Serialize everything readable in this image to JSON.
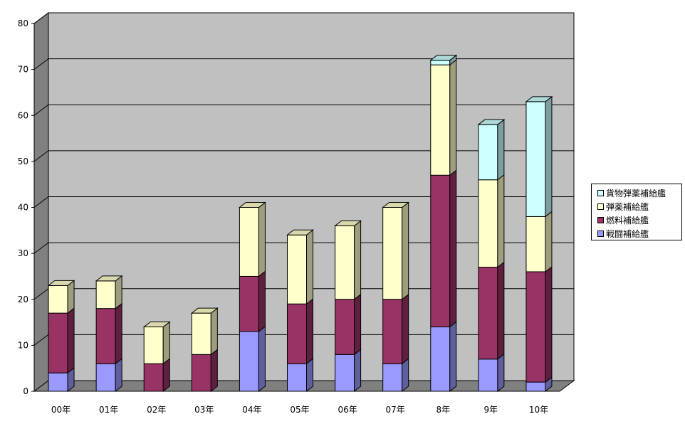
{
  "chart_data": {
    "type": "bar",
    "stacked": true,
    "three_d": true,
    "categories": [
      "00年",
      "01年",
      "02年",
      "03年",
      "04年",
      "05年",
      "06年",
      "07年",
      "8年",
      "9年",
      "10年"
    ],
    "series": [
      {
        "name": "戦闘補給艦",
        "color": "#9999ff",
        "values": [
          4,
          6,
          0,
          0,
          13,
          6,
          8,
          6,
          14,
          7,
          2
        ]
      },
      {
        "name": "燃料補給艦",
        "color": "#993366",
        "values": [
          13,
          12,
          6,
          8,
          12,
          13,
          12,
          14,
          33,
          20,
          24
        ]
      },
      {
        "name": "弾薬補給艦",
        "color": "#ffffcc",
        "values": [
          6,
          6,
          8,
          9,
          15,
          15,
          16,
          20,
          24,
          19,
          12
        ]
      },
      {
        "name": "貨物弾薬補給艦",
        "color": "#ccffff",
        "values": [
          0,
          0,
          0,
          0,
          0,
          0,
          0,
          0,
          1,
          12,
          25
        ]
      }
    ],
    "y_ticks": [
      "0",
      "10",
      "20",
      "30",
      "40",
      "50",
      "60",
      "70",
      "80"
    ],
    "ylim": [
      0,
      80
    ],
    "grid": true,
    "legend_position": "right",
    "title": "",
    "xlabel": "",
    "ylabel": "",
    "colors": {
      "wall": "#c0c0c0",
      "side_wall": "#808080",
      "floor": "#808080",
      "grid": "#000000"
    }
  }
}
